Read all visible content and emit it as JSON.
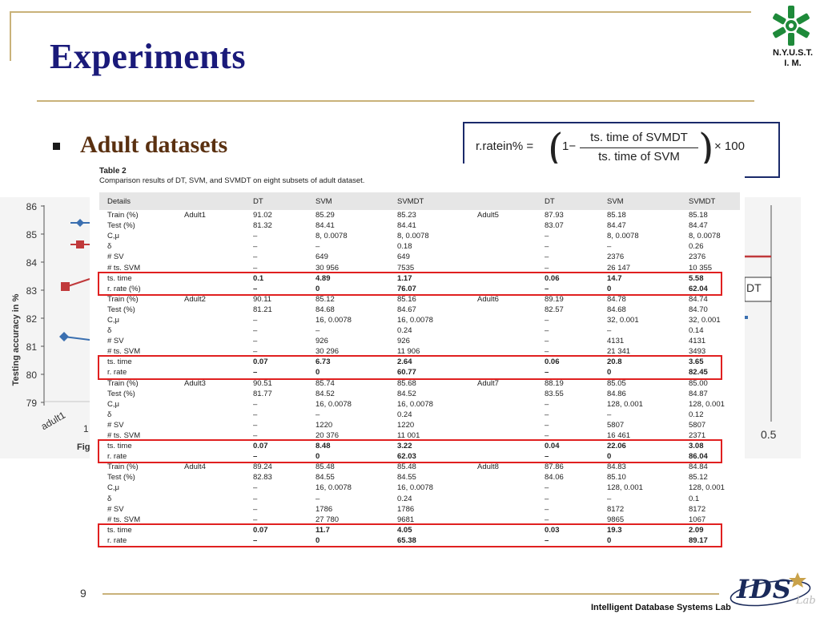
{
  "slide": {
    "title": "Experiments",
    "bullet": "Adult datasets",
    "page_number": "9",
    "footer": "Intelligent Database Systems Lab",
    "logo_text_line1": "N.Y.U.S.T.",
    "logo_text_line2": "I. M.",
    "lab_logo_text": "IDS",
    "lab_logo_suffix": "Lab"
  },
  "formula": {
    "lhs": "r.ratein% = ",
    "one": "1−",
    "numerator": "ts. time of SVMDT",
    "denominator": "ts. time of SVM",
    "rhs": "× 100"
  },
  "background_chart": {
    "ylabel": "Testing accuracy in %",
    "yticks": [
      "86",
      "85",
      "84",
      "83",
      "82",
      "81",
      "80",
      "79"
    ],
    "xtick_first": "adult1",
    "xtick_second": "1",
    "xtick_last": "0.5",
    "legend_fragment": "DT",
    "caption_fragment": "Fig",
    "line_colors": {
      "blue": "#3a6fb0",
      "red": "#c0393b"
    }
  },
  "table": {
    "title": "Table 2",
    "subtitle": "Comparison results of DT, SVM, and SVMDT on eight subsets of adult dataset.",
    "headers": [
      "Details",
      "",
      "DT",
      "SVM",
      "SVMDT",
      "",
      "DT",
      "SVM",
      "SVMDT"
    ],
    "rows": [
      [
        "Train (%)",
        "Adult1",
        "91.02",
        "85.29",
        "85.23",
        "Adult5",
        "87.93",
        "85.18",
        "85.18"
      ],
      [
        "Test (%)",
        "",
        "81.32",
        "84.41",
        "84.41",
        "",
        "83.07",
        "84.47",
        "84.47"
      ],
      [
        "C,μ",
        "",
        "–",
        "8, 0.0078",
        "8, 0.0078",
        "",
        "–",
        "8, 0.0078",
        "8, 0.0078"
      ],
      [
        "δ",
        "",
        "–",
        "–",
        "0.18",
        "",
        "–",
        "–",
        "0.26"
      ],
      [
        "# SV",
        "",
        "–",
        "649",
        "649",
        "",
        "–",
        "2376",
        "2376"
      ],
      [
        "# ts. SVM",
        "",
        "–",
        "30 956",
        "7535",
        "",
        "–",
        "26 147",
        "10 355"
      ],
      [
        "ts. time",
        "",
        "0.1",
        "4.89",
        "1.17",
        "",
        "0.06",
        "14.7",
        "5.58"
      ],
      [
        "r. rate (%)",
        "",
        "–",
        "0",
        "76.07",
        "",
        "–",
        "0",
        "62.04"
      ],
      [
        "Train (%)",
        "Adult2",
        "90.11",
        "85.12",
        "85.16",
        "Adult6",
        "89.19",
        "84.78",
        "84.74"
      ],
      [
        "Test (%)",
        "",
        "81.21",
        "84.68",
        "84.67",
        "",
        "82.57",
        "84.68",
        "84.70"
      ],
      [
        "C,μ",
        "",
        "–",
        "16, 0.0078",
        "16, 0.0078",
        "",
        "–",
        "32, 0.001",
        "32, 0.001"
      ],
      [
        "δ",
        "",
        "–",
        "–",
        "0.24",
        "",
        "–",
        "–",
        "0.14"
      ],
      [
        "# SV",
        "",
        "–",
        "926",
        "926",
        "",
        "–",
        "4131",
        "4131"
      ],
      [
        "# ts. SVM",
        "",
        "–",
        "30 296",
        "11 906",
        "",
        "–",
        "21 341",
        "3493"
      ],
      [
        "ts. time",
        "",
        "0.07",
        "6.73",
        "2.64",
        "",
        "0.06",
        "20.8",
        "3.65"
      ],
      [
        "r. rate",
        "",
        "–",
        "0",
        "60.77",
        "",
        "–",
        "0",
        "82.45"
      ],
      [
        "Train (%)",
        "Adult3",
        "90.51",
        "85.74",
        "85.68",
        "Adult7",
        "88.19",
        "85.05",
        "85.00"
      ],
      [
        "Test (%)",
        "",
        "81.77",
        "84.52",
        "84.52",
        "",
        "83.55",
        "84.86",
        "84.87"
      ],
      [
        "C,μ",
        "",
        "–",
        "16, 0.0078",
        "16, 0.0078",
        "",
        "–",
        "128, 0.001",
        "128, 0.001"
      ],
      [
        "δ",
        "",
        "–",
        "–",
        "0.24",
        "",
        "–",
        "–",
        "0.12"
      ],
      [
        "# SV",
        "",
        "–",
        "1220",
        "1220",
        "",
        "–",
        "5807",
        "5807"
      ],
      [
        "# ts. SVM",
        "",
        "–",
        "20 376",
        "11 001",
        "",
        "–",
        "16 461",
        "2371"
      ],
      [
        "ts. time",
        "",
        "0.07",
        "8.48",
        "3.22",
        "",
        "0.04",
        "22.06",
        "3.08"
      ],
      [
        "r. rate",
        "",
        "–",
        "0",
        "62.03",
        "",
        "–",
        "0",
        "86.04"
      ],
      [
        "Train (%)",
        "Adult4",
        "89.24",
        "85.48",
        "85.48",
        "Adult8",
        "87.86",
        "84.83",
        "84.84"
      ],
      [
        "Test (%)",
        "",
        "82.83",
        "84.55",
        "84.55",
        "",
        "84.06",
        "85.10",
        "85.12"
      ],
      [
        "C,μ",
        "",
        "–",
        "16, 0.0078",
        "16, 0.0078",
        "",
        "–",
        "128, 0.001",
        "128, 0.001"
      ],
      [
        "δ",
        "",
        "–",
        "–",
        "0.24",
        "",
        "–",
        "–",
        "0.1"
      ],
      [
        "# SV",
        "",
        "–",
        "1786",
        "1786",
        "",
        "–",
        "8172",
        "8172"
      ],
      [
        "# ts. SVM",
        "",
        "–",
        "27 780",
        "9681",
        "",
        "–",
        "9865",
        "1067"
      ],
      [
        "ts. time",
        "",
        "0.07",
        "11.7",
        "4.05",
        "",
        "0.03",
        "19.3",
        "2.09"
      ],
      [
        "r. rate",
        "",
        "–",
        "0",
        "65.38",
        "",
        "–",
        "0",
        "89.17"
      ]
    ],
    "bold_rows": [
      6,
      7,
      14,
      15,
      22,
      23,
      30,
      31
    ],
    "highlight_groups": [
      [
        6,
        7
      ],
      [
        14,
        15
      ],
      [
        22,
        23
      ],
      [
        30,
        31
      ]
    ],
    "highlight_color": "#e02020"
  }
}
